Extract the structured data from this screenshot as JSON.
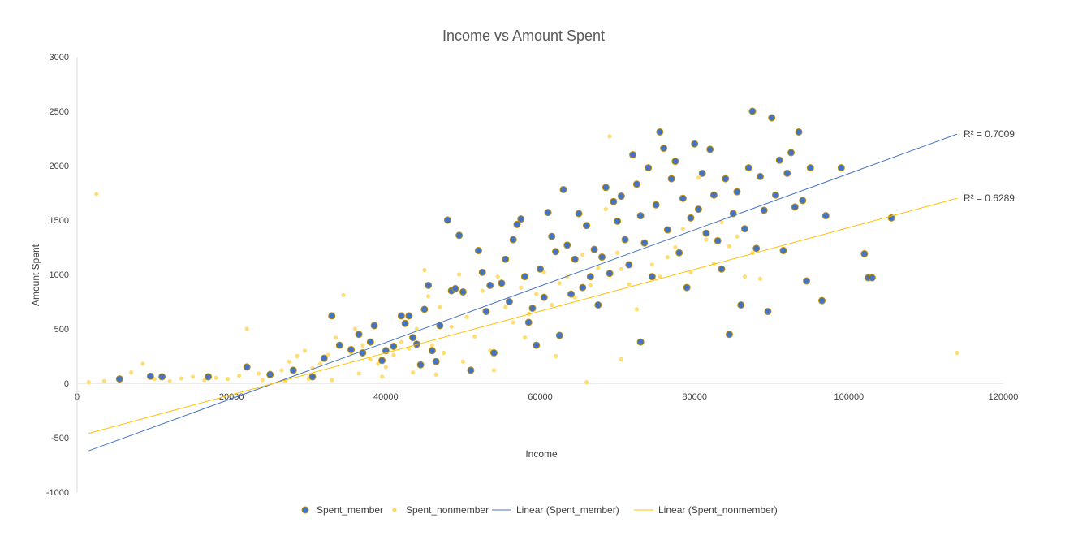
{
  "chart_data": {
    "type": "scatter",
    "title": "Income vs Amount Spent",
    "xlabel": "Income",
    "ylabel": "Amount Spent",
    "xlim": [
      0,
      120000
    ],
    "ylim": [
      -1000,
      3000
    ],
    "xticks": [
      "0",
      "20000",
      "40000",
      "60000",
      "80000",
      "100000",
      "120000"
    ],
    "yticks": [
      "3000",
      "2500",
      "2000",
      "1500",
      "1000",
      "500",
      "0",
      "-500",
      "-1000"
    ],
    "grid": false,
    "legend_position": "bottom",
    "colors": {
      "member": "#4472C4",
      "member_edge": "#BF9000",
      "nonmember": "#FFD966",
      "member_line": "#4472C4",
      "nonmember_line": "#FFC000"
    },
    "legend": [
      {
        "label": "Spent_member",
        "kind": "marker",
        "color": "#4472C4"
      },
      {
        "label": "Spent_nonmember",
        "kind": "marker",
        "color": "#FFD966"
      },
      {
        "label": "Linear (Spent_member)",
        "kind": "line",
        "color": "#4472C4"
      },
      {
        "label": "Linear (Spent_nonmember)",
        "kind": "line",
        "color": "#FFC000"
      }
    ],
    "series": [
      {
        "name": "Spent_member",
        "points": [
          [
            5500,
            40
          ],
          [
            9500,
            65
          ],
          [
            11000,
            60
          ],
          [
            17000,
            60
          ],
          [
            22000,
            150
          ],
          [
            25000,
            80
          ],
          [
            28000,
            120
          ],
          [
            30500,
            60
          ],
          [
            32000,
            230
          ],
          [
            33000,
            620
          ],
          [
            34000,
            350
          ],
          [
            35500,
            310
          ],
          [
            36500,
            450
          ],
          [
            37000,
            280
          ],
          [
            38000,
            380
          ],
          [
            38500,
            530
          ],
          [
            39500,
            210
          ],
          [
            40000,
            300
          ],
          [
            41000,
            340
          ],
          [
            42000,
            620
          ],
          [
            42500,
            550
          ],
          [
            43000,
            620
          ],
          [
            43500,
            420
          ],
          [
            44000,
            360
          ],
          [
            44500,
            170
          ],
          [
            45000,
            680
          ],
          [
            45500,
            900
          ],
          [
            46000,
            300
          ],
          [
            46500,
            200
          ],
          [
            47000,
            530
          ],
          [
            48000,
            1500
          ],
          [
            48500,
            850
          ],
          [
            49000,
            870
          ],
          [
            49500,
            1360
          ],
          [
            50000,
            840
          ],
          [
            51000,
            120
          ],
          [
            52000,
            1220
          ],
          [
            52500,
            1020
          ],
          [
            53000,
            660
          ],
          [
            53500,
            900
          ],
          [
            54000,
            280
          ],
          [
            55000,
            920
          ],
          [
            55500,
            1140
          ],
          [
            56000,
            750
          ],
          [
            56500,
            1320
          ],
          [
            57000,
            1460
          ],
          [
            57500,
            1510
          ],
          [
            58000,
            980
          ],
          [
            58500,
            560
          ],
          [
            59000,
            690
          ],
          [
            59500,
            350
          ],
          [
            60000,
            1050
          ],
          [
            60500,
            790
          ],
          [
            61000,
            1570
          ],
          [
            61500,
            1350
          ],
          [
            62000,
            1210
          ],
          [
            62500,
            440
          ],
          [
            63000,
            1780
          ],
          [
            63500,
            1270
          ],
          [
            64000,
            820
          ],
          [
            64500,
            1140
          ],
          [
            65000,
            1560
          ],
          [
            65500,
            880
          ],
          [
            66000,
            1450
          ],
          [
            66500,
            980
          ],
          [
            67000,
            1230
          ],
          [
            67500,
            720
          ],
          [
            68000,
            1160
          ],
          [
            68500,
            1800
          ],
          [
            69000,
            1010
          ],
          [
            69500,
            1670
          ],
          [
            70000,
            1490
          ],
          [
            70500,
            1720
          ],
          [
            71000,
            1320
          ],
          [
            71500,
            1090
          ],
          [
            72000,
            2100
          ],
          [
            72500,
            1830
          ],
          [
            73000,
            1540
          ],
          [
            73500,
            1290
          ],
          [
            74000,
            1980
          ],
          [
            74500,
            980
          ],
          [
            75000,
            1640
          ],
          [
            75500,
            2310
          ],
          [
            76000,
            2160
          ],
          [
            76500,
            1410
          ],
          [
            77000,
            1880
          ],
          [
            77500,
            2040
          ],
          [
            78000,
            1200
          ],
          [
            78500,
            1700
          ],
          [
            79000,
            880
          ],
          [
            79500,
            1520
          ],
          [
            80000,
            2200
          ],
          [
            80500,
            1600
          ],
          [
            81000,
            1930
          ],
          [
            81500,
            1380
          ],
          [
            82000,
            2150
          ],
          [
            82500,
            1730
          ],
          [
            83000,
            1310
          ],
          [
            83500,
            1050
          ],
          [
            84000,
            1880
          ],
          [
            84500,
            450
          ],
          [
            85000,
            1560
          ],
          [
            85500,
            1760
          ],
          [
            86000,
            720
          ],
          [
            86500,
            1420
          ],
          [
            87000,
            1980
          ],
          [
            87500,
            2500
          ],
          [
            88000,
            1240
          ],
          [
            88500,
            1900
          ],
          [
            89000,
            1590
          ],
          [
            89500,
            660
          ],
          [
            90000,
            2440
          ],
          [
            90500,
            1730
          ],
          [
            91000,
            2050
          ],
          [
            91500,
            1220
          ],
          [
            92000,
            1930
          ],
          [
            92500,
            2120
          ],
          [
            93000,
            1620
          ],
          [
            93500,
            2310
          ],
          [
            94000,
            1680
          ],
          [
            94500,
            940
          ],
          [
            95000,
            1980
          ],
          [
            96500,
            760
          ],
          [
            97000,
            1540
          ],
          [
            99000,
            1980
          ],
          [
            102000,
            1190
          ],
          [
            102500,
            970
          ],
          [
            103000,
            970
          ],
          [
            105500,
            1520
          ],
          [
            73000,
            380
          ]
        ]
      },
      {
        "name": "Spent_nonmember",
        "points": [
          [
            1500,
            10
          ],
          [
            2500,
            1740
          ],
          [
            3500,
            20
          ],
          [
            5500,
            30
          ],
          [
            7000,
            100
          ],
          [
            8500,
            180
          ],
          [
            10000,
            40
          ],
          [
            12000,
            20
          ],
          [
            13500,
            45
          ],
          [
            15000,
            60
          ],
          [
            16500,
            30
          ],
          [
            18000,
            50
          ],
          [
            19500,
            40
          ],
          [
            21000,
            70
          ],
          [
            22000,
            500
          ],
          [
            23500,
            90
          ],
          [
            25000,
            100
          ],
          [
            26500,
            120
          ],
          [
            27500,
            200
          ],
          [
            28500,
            250
          ],
          [
            29500,
            300
          ],
          [
            30500,
            140
          ],
          [
            31500,
            180
          ],
          [
            32500,
            260
          ],
          [
            33500,
            420
          ],
          [
            34500,
            810
          ],
          [
            35500,
            280
          ],
          [
            36000,
            500
          ],
          [
            37000,
            350
          ],
          [
            38000,
            220
          ],
          [
            39000,
            180
          ],
          [
            40000,
            150
          ],
          [
            41000,
            260
          ],
          [
            42000,
            380
          ],
          [
            43000,
            320
          ],
          [
            44000,
            500
          ],
          [
            45000,
            1040
          ],
          [
            45500,
            800
          ],
          [
            46000,
            350
          ],
          [
            47000,
            700
          ],
          [
            47500,
            280
          ],
          [
            48500,
            520
          ],
          [
            49500,
            1000
          ],
          [
            50500,
            610
          ],
          [
            51500,
            430
          ],
          [
            52500,
            850
          ],
          [
            53500,
            300
          ],
          [
            54500,
            980
          ],
          [
            55500,
            700
          ],
          [
            56500,
            560
          ],
          [
            57500,
            880
          ],
          [
            58500,
            640
          ],
          [
            59500,
            820
          ],
          [
            60500,
            1020
          ],
          [
            61500,
            720
          ],
          [
            62500,
            920
          ],
          [
            63500,
            980
          ],
          [
            64500,
            790
          ],
          [
            65500,
            1180
          ],
          [
            66500,
            900
          ],
          [
            67500,
            1060
          ],
          [
            68500,
            1600
          ],
          [
            69000,
            2270
          ],
          [
            70000,
            1200
          ],
          [
            70500,
            1050
          ],
          [
            71500,
            910
          ],
          [
            72500,
            680
          ],
          [
            73500,
            1300
          ],
          [
            74500,
            1090
          ],
          [
            75500,
            980
          ],
          [
            76500,
            1160
          ],
          [
            77500,
            1250
          ],
          [
            78500,
            1420
          ],
          [
            79500,
            1020
          ],
          [
            80500,
            1890
          ],
          [
            81500,
            1320
          ],
          [
            82500,
            1100
          ],
          [
            83500,
            1480
          ],
          [
            84500,
            1260
          ],
          [
            85500,
            1350
          ],
          [
            86500,
            980
          ],
          [
            87500,
            1200
          ],
          [
            88500,
            960
          ],
          [
            70500,
            220
          ],
          [
            66000,
            10
          ],
          [
            62000,
            250
          ],
          [
            58000,
            420
          ],
          [
            54000,
            120
          ],
          [
            50000,
            200
          ],
          [
            46500,
            80
          ],
          [
            43500,
            100
          ],
          [
            39500,
            60
          ],
          [
            36500,
            90
          ],
          [
            33000,
            30
          ],
          [
            30000,
            40
          ],
          [
            27000,
            20
          ],
          [
            24000,
            30
          ],
          [
            114000,
            280
          ]
        ]
      }
    ],
    "trendlines": [
      {
        "name": "Linear (Spent_member)",
        "x": [
          1500,
          114000
        ],
        "y": [
          -620,
          2290
        ],
        "r2": "R² = 0.7009"
      },
      {
        "name": "Linear (Spent_nonmember)",
        "x": [
          1500,
          114000
        ],
        "y": [
          -460,
          1700
        ],
        "r2": "R² = 0.6289"
      }
    ]
  }
}
